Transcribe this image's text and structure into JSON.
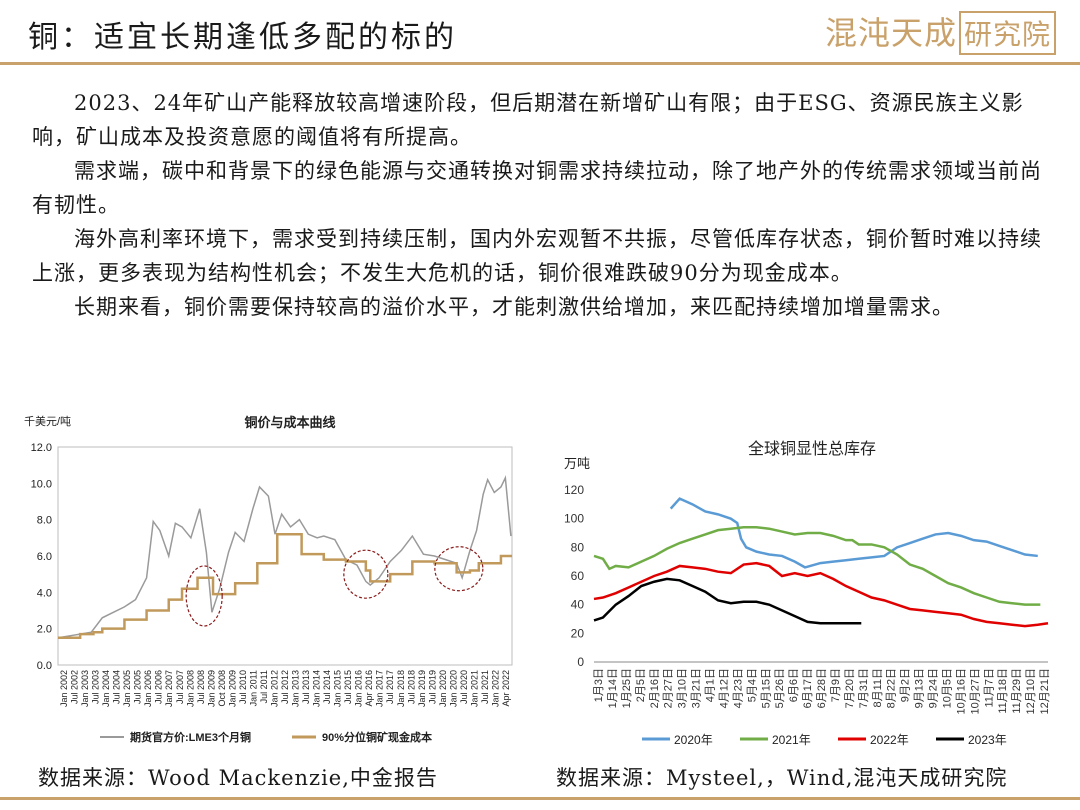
{
  "page": {
    "title": "铜：适宜长期逢低多配的标的",
    "logo_main": "混沌天成",
    "logo_box": "研究院",
    "paragraphs": [
      "2023、24年矿山产能释放较高增速阶段，但后期潜在新增矿山有限；由于ESG、资源民族主义影响，矿山成本及投资意愿的阈值将有所提高。",
      "需求端，碳中和背景下的绿色能源与交通转换对铜需求持续拉动，除了地产外的传统需求领域当前尚有韧性。",
      "海外高利率环境下，需求受到持续压制，国内外宏观暂不共振，尽管低库存状态，铜价暂时难以持续上涨，更多表现为结构性机会；不发生大危机的话，铜价很难跌破90分为现金成本。",
      "长期来看，铜价需要保持较高的溢价水平，才能刺激供给增加，来匹配持续增加增量需求。"
    ],
    "source_left": "数据来源：Wood Mackenzie,中金报告",
    "source_right": "数据来源：Mysteel,，Wind,混沌天成研究院"
  },
  "chart_data": [
    {
      "type": "line",
      "title": "铜价与成本曲线",
      "ylabel": "千美元/吨",
      "ylim": [
        0,
        12
      ],
      "yticks": [
        "0.0",
        "2.0",
        "4.0",
        "6.0",
        "8.0",
        "10.0",
        "12.0"
      ],
      "xticks": [
        "Jan 2002",
        "Jul 2002",
        "Jan 2003",
        "Jul 2003",
        "Jan 2004",
        "Jul 2004",
        "Jan 2005",
        "Jul 2005",
        "Jan 2006",
        "Jul 2006",
        "Jan 2007",
        "Jul 2007",
        "Jan 2008",
        "Jul 2008",
        "Jan 2009",
        "Oct 2008",
        "Jan 2009",
        "Jul 2010",
        "Jan 2011",
        "Jul 2011",
        "Jan 2012",
        "Jul 2012",
        "Jan 2013",
        "Jul 2013",
        "Jan 2014",
        "Jul 2014",
        "Jan 2015",
        "Jul 2015",
        "Jan 2016",
        "Apr 2016",
        "Jan 2017",
        "Jul 2017",
        "Jan 2018",
        "Jul 2018",
        "Jan 2019",
        "Jul 2019",
        "Jan 2020",
        "Jan 2020",
        "Jul 2020",
        "Jan 2021",
        "Jul 2021",
        "Jan 2022",
        "Apr 2022"
      ],
      "x_range": [
        2002,
        2022.5
      ],
      "series": [
        {
          "name": "期货官方价:LME3个月铜",
          "color": "#9a9a9a",
          "x": [
            2002.0,
            2002.5,
            2003.0,
            2003.5,
            2004.0,
            2004.5,
            2005.0,
            2005.5,
            2006.0,
            2006.3,
            2006.6,
            2007.0,
            2007.3,
            2007.6,
            2008.0,
            2008.4,
            2008.7,
            2008.95,
            2009.3,
            2009.7,
            2010.0,
            2010.4,
            2010.8,
            2011.1,
            2011.5,
            2011.8,
            2012.1,
            2012.5,
            2012.9,
            2013.3,
            2013.7,
            2014.0,
            2014.5,
            2015.0,
            2015.5,
            2015.9,
            2016.1,
            2016.5,
            2017.0,
            2017.5,
            2018.0,
            2018.5,
            2019.0,
            2019.5,
            2020.0,
            2020.25,
            2020.6,
            2020.9,
            2021.2,
            2021.4,
            2021.7,
            2022.0,
            2022.2,
            2022.45
          ],
          "y": [
            1.5,
            1.6,
            1.7,
            1.8,
            2.6,
            2.9,
            3.2,
            3.6,
            4.8,
            7.9,
            7.4,
            6.0,
            7.8,
            7.6,
            7.0,
            8.6,
            6.2,
            2.9,
            4.2,
            6.2,
            7.3,
            6.8,
            8.6,
            9.8,
            9.3,
            7.2,
            8.3,
            7.6,
            8.0,
            7.2,
            7.0,
            7.1,
            6.9,
            5.8,
            5.5,
            4.6,
            4.4,
            4.8,
            5.7,
            6.3,
            7.1,
            6.1,
            6.0,
            5.8,
            5.6,
            4.8,
            6.3,
            7.4,
            9.4,
            10.2,
            9.5,
            9.8,
            10.3,
            7.1
          ]
        },
        {
          "name": "90%分位铜矿现金成本",
          "color": "#c19a5b",
          "x": [
            2002.0,
            2003.0,
            2003.6,
            2004.0,
            2005.0,
            2006.0,
            2007.0,
            2007.6,
            2008.3,
            2009.0,
            2010.0,
            2011.0,
            2011.9,
            2013.0,
            2014.0,
            2015.0,
            2015.9,
            2016.1,
            2017.0,
            2018.0,
            2019.0,
            2020.0,
            2020.6,
            2021.0,
            2022.0,
            2022.5
          ],
          "y": [
            1.5,
            1.7,
            1.8,
            2.0,
            2.5,
            3.0,
            3.6,
            4.2,
            4.8,
            3.9,
            4.5,
            5.6,
            7.2,
            6.1,
            5.8,
            5.7,
            5.2,
            4.6,
            5.0,
            5.7,
            5.6,
            5.1,
            5.2,
            5.6,
            6.0,
            6.0
          ],
          "step": true
        }
      ],
      "annotations": [
        "2008-2009 dip circle",
        "2015-2016 dip circle",
        "2020 dip circle"
      ]
    },
    {
      "type": "line",
      "title": "全球铜显性总库存",
      "ylabel": "万吨",
      "ylim": [
        0,
        120
      ],
      "yticks": [
        "0",
        "20",
        "40",
        "60",
        "80",
        "100",
        "120"
      ],
      "xticks": [
        "1月3日",
        "1月14日",
        "1月25日",
        "2月5日",
        "2月16日",
        "2月27日",
        "3月10日",
        "3月21日",
        "4月1日",
        "4月12日",
        "4月23日",
        "5月4日",
        "5月15日",
        "5月26日",
        "6月6日",
        "6月17日",
        "6月28日",
        "7月9日",
        "7月20日",
        "7月31日",
        "8月11日",
        "8月22日",
        "9月2日",
        "9月13日",
        "9月24日",
        "10月5日",
        "10月16日",
        "10月27日",
        "11月7日",
        "11月18日",
        "11月29日",
        "12月10日",
        "12月21日"
      ],
      "x_range": [
        3,
        358
      ],
      "series": [
        {
          "name": "2020年",
          "color": "#5b9bd5",
          "x": [
            63,
            70,
            80,
            90,
            100,
            110,
            115,
            118,
            122,
            130,
            140,
            150,
            160,
            168,
            180,
            190,
            200,
            210,
            220,
            230,
            240,
            250,
            260,
            270,
            280,
            290,
            300,
            310,
            320,
            330,
            340,
            350
          ],
          "y": [
            107,
            114,
            110,
            105,
            103,
            100,
            97,
            86,
            80,
            77,
            75,
            74,
            70,
            66,
            69,
            70,
            71,
            72,
            73,
            74,
            80,
            83,
            86,
            89,
            90,
            88,
            85,
            84,
            81,
            78,
            75,
            74
          ]
        },
        {
          "name": "2021年",
          "color": "#70ad47",
          "x": [
            3,
            10,
            15,
            20,
            30,
            40,
            50,
            60,
            70,
            80,
            90,
            100,
            110,
            120,
            130,
            140,
            150,
            160,
            170,
            180,
            190,
            200,
            205,
            210,
            220,
            230,
            240,
            250,
            260,
            270,
            280,
            290,
            300,
            310,
            320,
            330,
            340,
            348,
            352
          ],
          "y": [
            74,
            72,
            65,
            67,
            66,
            70,
            74,
            79,
            83,
            86,
            89,
            92,
            93,
            94,
            94,
            93,
            91,
            89,
            90,
            90,
            88,
            85,
            85,
            82,
            82,
            80,
            75,
            68,
            65,
            60,
            55,
            52,
            48,
            45,
            42,
            41,
            40,
            40,
            40
          ]
        },
        {
          "name": "2022年",
          "color": "#e00000",
          "x": [
            3,
            10,
            20,
            30,
            40,
            50,
            60,
            70,
            80,
            90,
            100,
            110,
            120,
            130,
            140,
            150,
            160,
            170,
            180,
            190,
            200,
            210,
            220,
            230,
            240,
            250,
            260,
            270,
            280,
            290,
            300,
            310,
            320,
            330,
            340,
            350,
            358
          ],
          "y": [
            44,
            45,
            48,
            52,
            56,
            60,
            63,
            67,
            66,
            65,
            63,
            62,
            68,
            69,
            67,
            60,
            62,
            60,
            62,
            58,
            53,
            49,
            45,
            43,
            40,
            37,
            36,
            35,
            34,
            33,
            30,
            28,
            27,
            26,
            25,
            26,
            27
          ]
        },
        {
          "name": "2023年",
          "color": "#000000",
          "x": [
            3,
            10,
            20,
            30,
            40,
            50,
            60,
            70,
            80,
            90,
            100,
            110,
            120,
            130,
            140,
            150,
            160,
            170,
            180,
            190,
            200,
            212
          ],
          "y": [
            29,
            31,
            40,
            46,
            53,
            56,
            58,
            57,
            53,
            49,
            43,
            41,
            42,
            42,
            40,
            36,
            32,
            28,
            27,
            27,
            27,
            27
          ]
        }
      ]
    }
  ]
}
